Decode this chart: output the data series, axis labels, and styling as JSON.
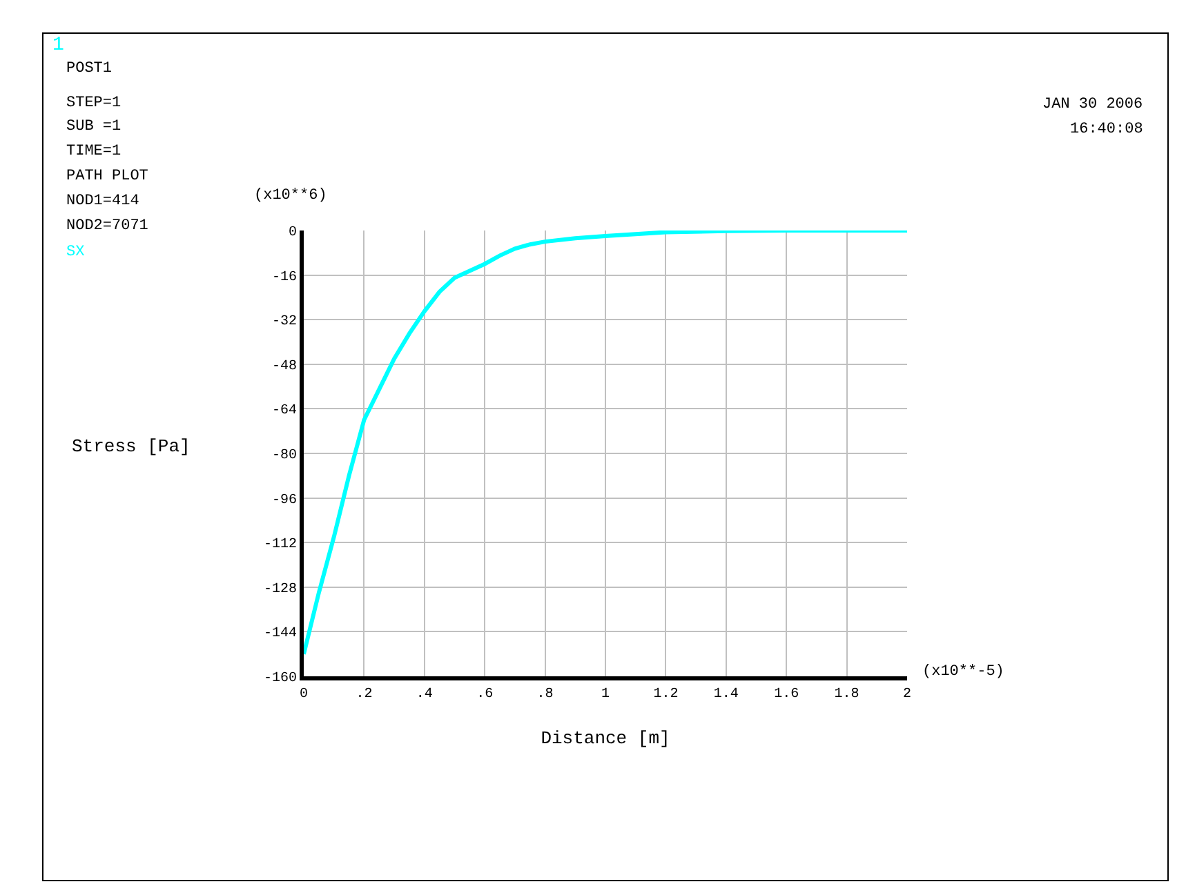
{
  "chart_data": {
    "type": "line",
    "xlabel": "Distance [m]",
    "ylabel": "Stress [Pa]",
    "x": [
      0,
      0.05,
      0.1,
      0.15,
      0.2,
      0.25,
      0.3,
      0.35,
      0.4,
      0.45,
      0.5,
      0.55,
      0.6,
      0.65,
      0.7,
      0.75,
      0.8,
      0.9,
      1.0,
      1.1,
      1.2,
      1.4,
      1.6,
      1.8,
      2.0
    ],
    "series": [
      {
        "name": "SX",
        "color": "#00ffff",
        "values": [
          -152,
          -130,
          -110,
          -88,
          -68,
          -57,
          -46,
          -37,
          -29,
          -22,
          -17,
          -14.5,
          -12,
          -9,
          -6.5,
          -5,
          -4,
          -2.8,
          -2,
          -1.3,
          -0.6,
          -0.2,
          0,
          0,
          0
        ]
      }
    ],
    "xlim": [
      0,
      2
    ],
    "xticks": [
      0,
      ".2",
      ".4",
      ".6",
      ".8",
      1,
      1.2,
      1.4,
      1.6,
      1.8,
      2
    ],
    "ylim": [
      -160,
      0
    ],
    "yticks": [
      0,
      -16,
      -32,
      -48,
      -64,
      -80,
      -96,
      -112,
      -128,
      -144,
      -160
    ],
    "grid": true,
    "legend": false,
    "line_style": "solid",
    "marker": "none",
    "annotations": [
      "1",
      "POST1",
      "STEP=1",
      "SUB =1",
      "TIME=1",
      "PATH PLOT",
      "NOD1=414",
      "NOD2=7071",
      "JAN 30 2006",
      "16:40:08",
      "(x10**6)",
      "(x10**-5)"
    ]
  }
}
